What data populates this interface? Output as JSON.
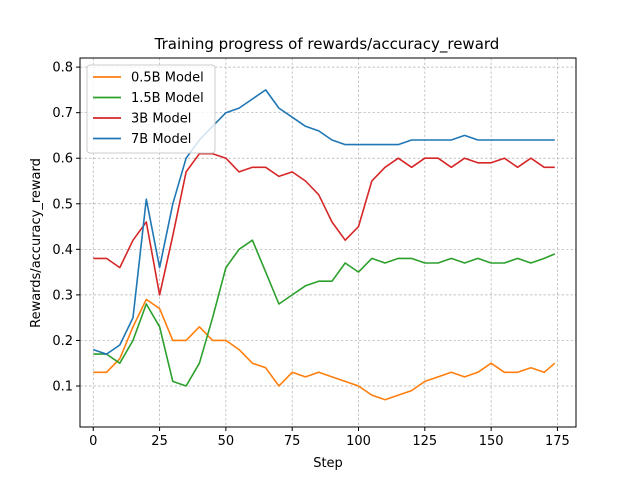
{
  "chart_data": {
    "type": "line",
    "title": "Training progress of rewards/accuracy_reward",
    "xlabel": "Step",
    "ylabel": "Rewards/accuracy_reward",
    "xlim": [
      -5,
      182
    ],
    "ylim": [
      0.01,
      0.82
    ],
    "xticks": [
      0,
      25,
      50,
      75,
      100,
      125,
      150,
      175
    ],
    "yticks": [
      0.1,
      0.2,
      0.3,
      0.4,
      0.5,
      0.6,
      0.7,
      0.8
    ],
    "xtick_labels": [
      "0",
      "25",
      "50",
      "75",
      "100",
      "125",
      "150",
      "175"
    ],
    "ytick_labels": [
      "0.1",
      "0.2",
      "0.3",
      "0.4",
      "0.5",
      "0.6",
      "0.7",
      "0.8"
    ],
    "grid": true,
    "legend_position": "top-left",
    "series": [
      {
        "name": "0.5B Model",
        "color": "#ff7f0e",
        "x": [
          0,
          5,
          10,
          15,
          20,
          25,
          30,
          35,
          40,
          45,
          50,
          55,
          60,
          65,
          70,
          75,
          80,
          85,
          90,
          95,
          100,
          105,
          110,
          115,
          120,
          125,
          130,
          135,
          140,
          145,
          150,
          155,
          160,
          165,
          170,
          174
        ],
        "y": [
          0.13,
          0.13,
          0.16,
          0.23,
          0.29,
          0.27,
          0.2,
          0.2,
          0.23,
          0.2,
          0.2,
          0.18,
          0.15,
          0.14,
          0.1,
          0.13,
          0.12,
          0.13,
          0.12,
          0.11,
          0.1,
          0.08,
          0.07,
          0.08,
          0.09,
          0.11,
          0.12,
          0.13,
          0.12,
          0.13,
          0.15,
          0.13,
          0.13,
          0.14,
          0.13,
          0.15
        ]
      },
      {
        "name": "1.5B Model",
        "color": "#2ca02c",
        "x": [
          0,
          5,
          10,
          15,
          20,
          25,
          30,
          35,
          40,
          45,
          50,
          55,
          60,
          65,
          70,
          75,
          80,
          85,
          90,
          95,
          100,
          105,
          110,
          115,
          120,
          125,
          130,
          135,
          140,
          145,
          150,
          155,
          160,
          165,
          170,
          174
        ],
        "y": [
          0.17,
          0.17,
          0.15,
          0.2,
          0.28,
          0.23,
          0.11,
          0.1,
          0.15,
          0.25,
          0.36,
          0.4,
          0.42,
          0.35,
          0.28,
          0.3,
          0.32,
          0.33,
          0.33,
          0.37,
          0.35,
          0.38,
          0.37,
          0.38,
          0.38,
          0.37,
          0.37,
          0.38,
          0.37,
          0.38,
          0.37,
          0.37,
          0.38,
          0.37,
          0.38,
          0.39
        ]
      },
      {
        "name": "3B Model",
        "color": "#d62728",
        "x": [
          0,
          5,
          10,
          15,
          20,
          25,
          30,
          35,
          40,
          45,
          50,
          55,
          60,
          65,
          70,
          75,
          80,
          85,
          90,
          95,
          100,
          105,
          110,
          115,
          120,
          125,
          130,
          135,
          140,
          145,
          150,
          155,
          160,
          165,
          170,
          174
        ],
        "y": [
          0.38,
          0.38,
          0.36,
          0.42,
          0.46,
          0.3,
          0.43,
          0.57,
          0.61,
          0.61,
          0.6,
          0.57,
          0.58,
          0.58,
          0.56,
          0.57,
          0.55,
          0.52,
          0.46,
          0.42,
          0.45,
          0.55,
          0.58,
          0.6,
          0.58,
          0.6,
          0.6,
          0.58,
          0.6,
          0.59,
          0.59,
          0.6,
          0.58,
          0.6,
          0.58,
          0.58
        ]
      },
      {
        "name": "7B Model",
        "color": "#1f77b4",
        "x": [
          0,
          5,
          10,
          15,
          20,
          25,
          30,
          35,
          40,
          45,
          50,
          55,
          60,
          65,
          70,
          75,
          80,
          85,
          90,
          95,
          100,
          105,
          110,
          115,
          120,
          125,
          130,
          135,
          140,
          145,
          150,
          155,
          160,
          165,
          170,
          174
        ],
        "y": [
          0.18,
          0.17,
          0.19,
          0.25,
          0.51,
          0.36,
          0.5,
          0.6,
          0.64,
          0.67,
          0.7,
          0.71,
          0.73,
          0.75,
          0.71,
          0.69,
          0.67,
          0.66,
          0.64,
          0.63,
          0.63,
          0.63,
          0.63,
          0.63,
          0.64,
          0.64,
          0.64,
          0.64,
          0.65,
          0.64,
          0.64,
          0.64,
          0.64,
          0.64,
          0.64,
          0.64
        ]
      }
    ]
  }
}
